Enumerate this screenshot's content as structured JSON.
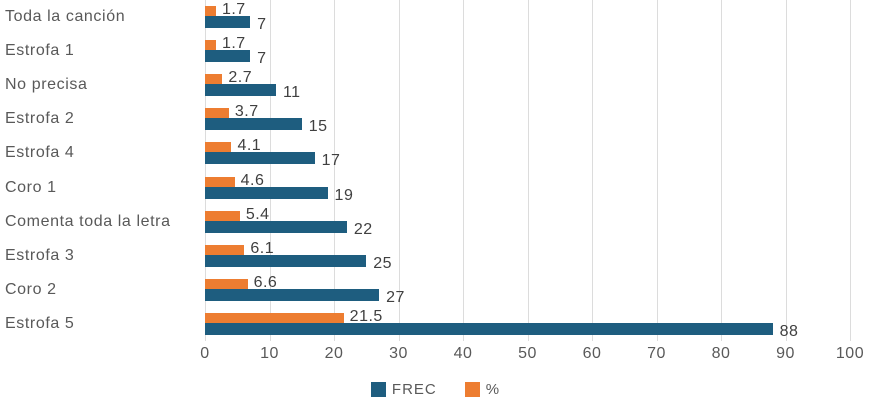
{
  "chart_data": {
    "type": "bar",
    "orientation": "horizontal",
    "title": "",
    "xlabel": "",
    "ylabel": "",
    "categories": [
      "Toda la canción",
      "Estrofa 1",
      "No precisa",
      "Estrofa 2",
      "Estrofa 4",
      "Coro 1",
      "Comenta toda la letra",
      "Estrofa 3",
      "Coro 2",
      "Estrofa 5"
    ],
    "series": [
      {
        "name": "FREC",
        "color": "#1e5d7f",
        "values": [
          7,
          7,
          11,
          15,
          17,
          19,
          22,
          25,
          27,
          88
        ],
        "labels": [
          "7",
          "7",
          "11",
          "15",
          "17",
          "19",
          "22",
          "25",
          "27",
          "88"
        ]
      },
      {
        "name": "%",
        "color": "#ed7d31",
        "values": [
          1.7,
          1.7,
          2.7,
          3.7,
          4.1,
          4.6,
          5.4,
          6.1,
          6.6,
          21.5
        ],
        "labels": [
          "1.7",
          "1.7",
          "2.7",
          "3.7",
          "4.1",
          "4.6",
          "5.4",
          "6.1",
          "6.6",
          "21.5"
        ]
      }
    ],
    "x_ticks": [
      "0",
      "10",
      "20",
      "30",
      "40",
      "50",
      "60",
      "70",
      "80",
      "90",
      "100"
    ],
    "xlim": [
      0,
      100
    ],
    "grid": true,
    "data_labels": true,
    "legend_position": "bottom",
    "legend": [
      {
        "label": "FREC",
        "color": "#1e5d7f"
      },
      {
        "label": "%",
        "color": "#ed7d31"
      }
    ]
  },
  "colors": {
    "grid": "#dcdcdc",
    "axis_text": "#595959",
    "data_label_text": "#404040"
  }
}
